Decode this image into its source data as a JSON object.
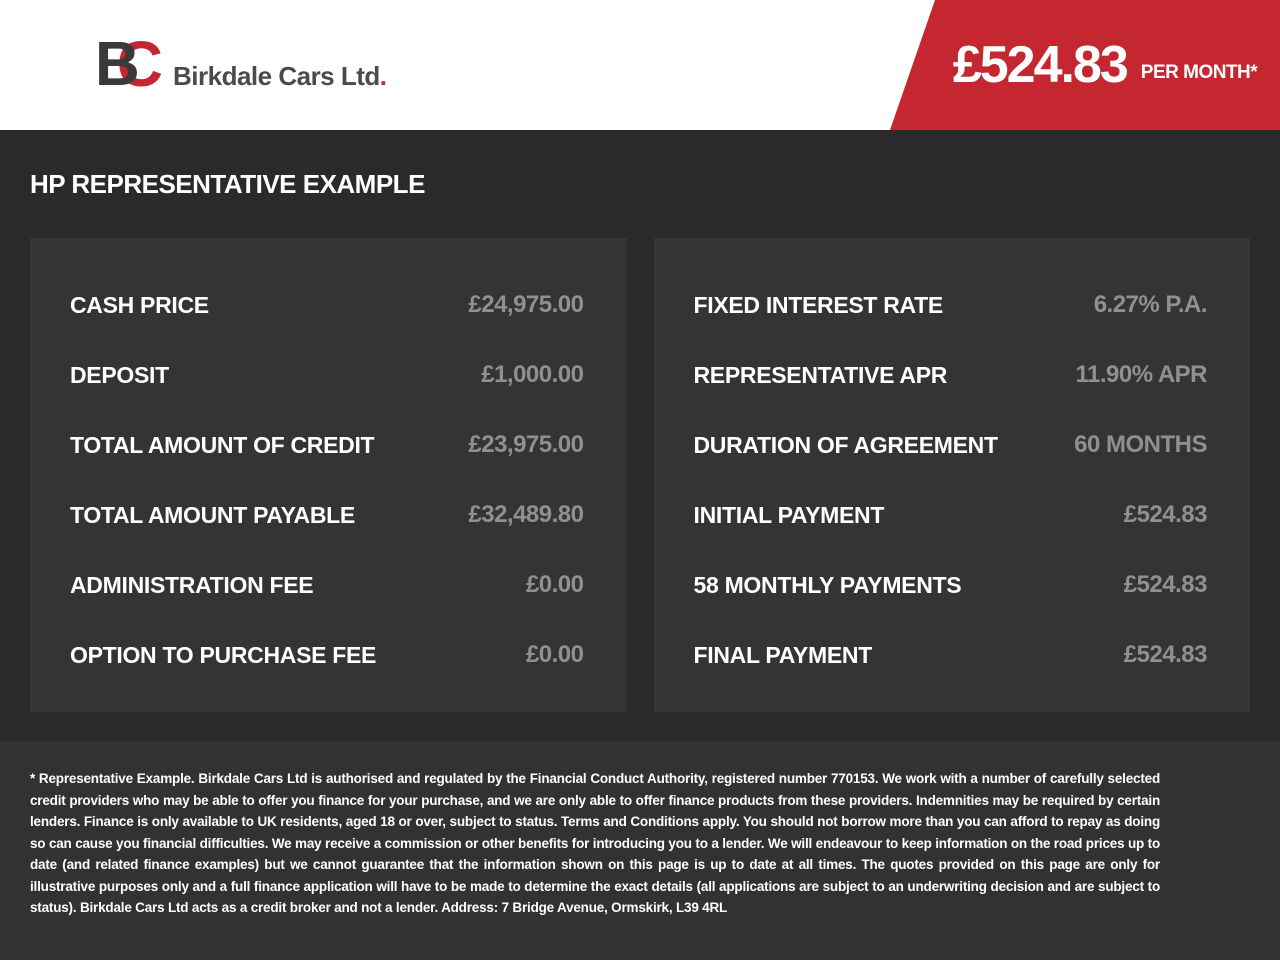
{
  "colors": {
    "accent_red": "#c4272f",
    "page_bg": "#2a2a2a",
    "panel_bg": "#343434",
    "footer_bg": "#323232",
    "value_gray": "#909090",
    "header_bg": "#ffffff"
  },
  "header": {
    "logo": {
      "letter_b": "B",
      "letter_c": "C",
      "company": "Birkdale Cars Ltd",
      "period": "."
    },
    "price_banner": {
      "amount": "£524.83",
      "per_label": "PER MONTH*"
    }
  },
  "main": {
    "title": "HP REPRESENTATIVE EXAMPLE",
    "left_panel": {
      "rows": [
        {
          "label": "CASH PRICE",
          "value": "£24,975.00"
        },
        {
          "label": "DEPOSIT",
          "value": "£1,000.00"
        },
        {
          "label": "TOTAL AMOUNT OF CREDIT",
          "value": "£23,975.00"
        },
        {
          "label": "TOTAL AMOUNT PAYABLE",
          "value": "£32,489.80"
        },
        {
          "label": "ADMINISTRATION FEE",
          "value": "£0.00"
        },
        {
          "label": "OPTION TO PURCHASE FEE",
          "value": "£0.00"
        }
      ]
    },
    "right_panel": {
      "rows": [
        {
          "label": "FIXED INTEREST RATE",
          "value": "6.27% P.A."
        },
        {
          "label": "REPRESENTATIVE APR",
          "value": "11.90% APR"
        },
        {
          "label": "DURATION OF AGREEMENT",
          "value": "60 MONTHS"
        },
        {
          "label": "INITIAL PAYMENT",
          "value": "£524.83"
        },
        {
          "label": "58 MONTHLY PAYMENTS",
          "value": "£524.83"
        },
        {
          "label": "FINAL PAYMENT",
          "value": "£524.83"
        }
      ]
    }
  },
  "footer": {
    "disclaimer": "* Representative Example. Birkdale Cars Ltd is authorised and regulated by the Financial Conduct Authority, registered number 770153. We work with a number of carefully selected credit providers who may be able to offer you finance for your purchase, and we are only able to offer finance products from these providers. Indemnities may be required by certain lenders. Finance is only available to UK residents, aged 18 or over, subject to status. Terms and Conditions apply. You should not borrow more than you can afford to repay as doing so can cause you financial difficulties. We may receive a commission or other benefits for introducing you to a lender. We will endeavour to keep information on the road prices up to date (and related finance examples) but we cannot guarantee that the information shown on this page is up to date at all times. The quotes provided on this page are only for illustrative purposes only and a full finance application will have to be made to determine the exact details (all applications are subject to an underwriting decision and are subject to status). Birkdale Cars Ltd acts as a credit broker and not a lender. Address: 7 Bridge Avenue, Ormskirk, L39 4RL"
  }
}
